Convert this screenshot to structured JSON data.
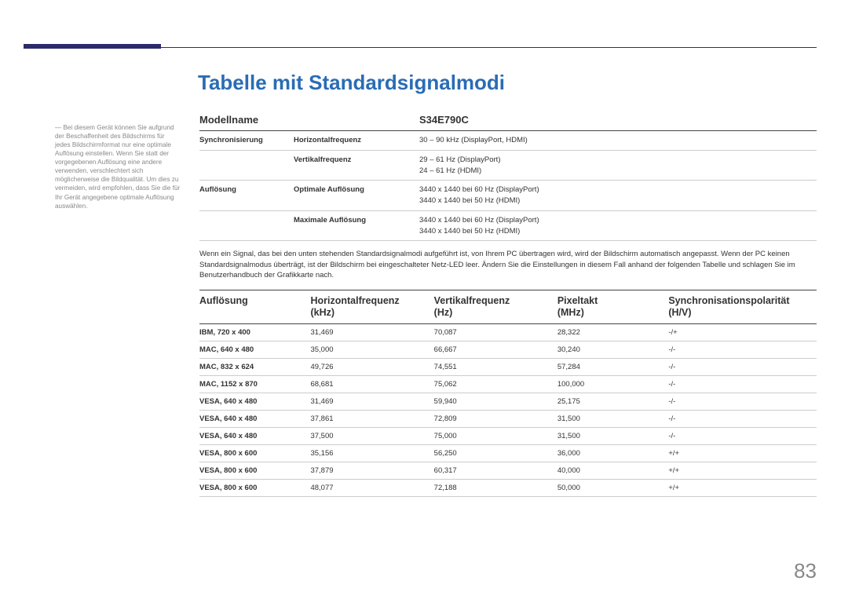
{
  "page": {
    "title": "Tabelle mit Standardsignalmodi",
    "number": "83",
    "accent_color": "#2b2b6b",
    "title_color": "#2a6cb5"
  },
  "side_note": "― Bei diesem Gerät können Sie aufgrund der Beschaffenheit des Bildschirms für jedes Bildschirmformat nur eine optimale Auflösung einstellen. Wenn Sie statt der vorgegebenen Auflösung eine andere verwenden, verschlechtert sich möglicherweise die Bildqualität. Um dies zu vermeiden, wird empfohlen, dass Sie die für Ihr Gerät angegebene optimale Auflösung auswählen.",
  "spec": {
    "header_left": "Modellname",
    "header_right": "S34E790C",
    "rows": [
      {
        "label": "Synchronisierung",
        "sub": "Horizontalfrequenz",
        "value": "30 – 90 kHz (DisplayPort, HDMI)"
      },
      {
        "label": "",
        "sub": "Vertikalfrequenz",
        "value": "29 – 61 Hz (DisplayPort)\n24 – 61 Hz (HDMI)"
      },
      {
        "label": "Auflösung",
        "sub": "Optimale Auflösung",
        "value": "3440 x 1440 bei 60 Hz (DisplayPort)\n3440 x 1440 bei 50 Hz (HDMI)"
      },
      {
        "label": "",
        "sub": "Maximale Auflösung",
        "value": "3440 x 1440 bei 60 Hz (DisplayPort)\n3440 x 1440 bei 50 Hz (HDMI)"
      }
    ]
  },
  "note_para": "Wenn ein Signal, das bei den unten stehenden Standardsignalmodi aufgeführt ist, von Ihrem PC übertragen wird, wird der Bildschirm automatisch angepasst. Wenn der PC keinen Standardsignalmodus überträgt, ist der Bildschirm bei eingeschalteter Netz-LED leer. Ändern Sie die Einstellungen in diesem Fall anhand der folgenden Tabelle und schlagen Sie im Benutzerhandbuch der Grafikkarte nach.",
  "signal_table": {
    "columns": [
      "Auflösung",
      "Horizontalfrequenz (kHz)",
      "Vertikalfrequenz (Hz)",
      "Pixeltakt (MHz)",
      "Synchronisationspolarität (H/V)"
    ],
    "rows": [
      [
        "IBM, 720 x 400",
        "31,469",
        "70,087",
        "28,322",
        "-/+"
      ],
      [
        "MAC, 640 x 480",
        "35,000",
        "66,667",
        "30,240",
        "-/-"
      ],
      [
        "MAC, 832 x 624",
        "49,726",
        "74,551",
        "57,284",
        "-/-"
      ],
      [
        "MAC, 1152 x 870",
        "68,681",
        "75,062",
        "100,000",
        "-/-"
      ],
      [
        "VESA, 640 x 480",
        "31,469",
        "59,940",
        "25,175",
        "-/-"
      ],
      [
        "VESA, 640 x 480",
        "37,861",
        "72,809",
        "31,500",
        "-/-"
      ],
      [
        "VESA, 640 x 480",
        "37,500",
        "75,000",
        "31,500",
        "-/-"
      ],
      [
        "VESA, 800 x 600",
        "35,156",
        "56,250",
        "36,000",
        "+/+"
      ],
      [
        "VESA, 800 x 600",
        "37,879",
        "60,317",
        "40,000",
        "+/+"
      ],
      [
        "VESA, 800 x 600",
        "48,077",
        "72,188",
        "50,000",
        "+/+"
      ]
    ]
  }
}
